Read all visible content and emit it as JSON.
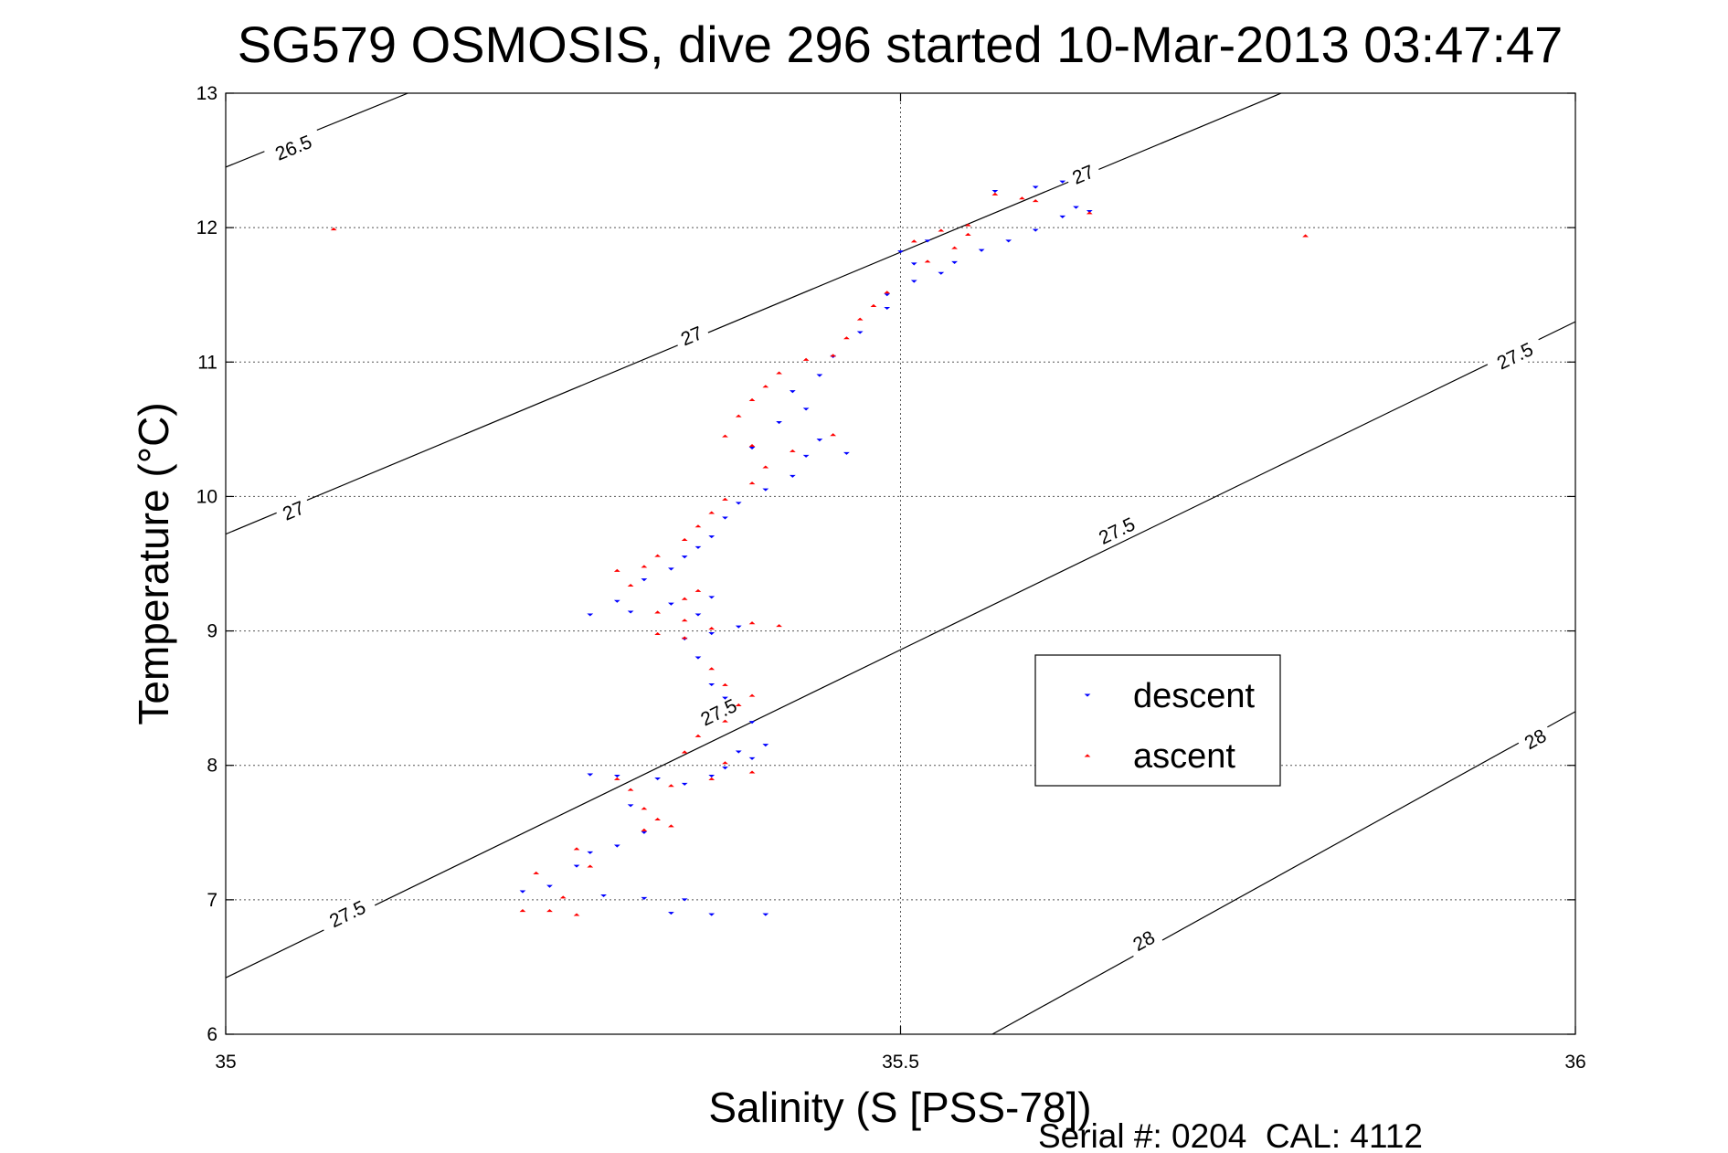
{
  "chart_data": {
    "type": "scatter",
    "title": "SG579 OSMOSIS, dive 296 started 10-Mar-2013 03:47:47",
    "xlabel": "Salinity (S [PSS-78])",
    "ylabel": "Temperature (°C)",
    "xlim": [
      35,
      36
    ],
    "ylim": [
      6,
      13
    ],
    "xticks": [
      35,
      35.5,
      36
    ],
    "yticks": [
      6,
      7,
      8,
      9,
      10,
      11,
      12,
      13
    ],
    "xtick_labels": [
      "35",
      "35.5",
      "36"
    ],
    "ytick_labels": [
      "6",
      "7",
      "8",
      "9",
      "10",
      "11",
      "12",
      "13"
    ],
    "grid": true,
    "legend_position": "right-center",
    "footer": "Serial #: 0204  CAL: 4112",
    "isopycnals": [
      {
        "label": "26.5",
        "points": [
          [
            35.0,
            12.45
          ],
          [
            35.135,
            13.0
          ]
        ],
        "label_positions": [
          [
            35.05,
            12.6
          ]
        ]
      },
      {
        "label": "27",
        "points": [
          [
            35.0,
            9.72
          ],
          [
            35.782,
            13.0
          ]
        ],
        "label_positions": [
          [
            35.05,
            9.9
          ],
          [
            35.345,
            11.2
          ],
          [
            35.635,
            12.4
          ]
        ]
      },
      {
        "label": "27.5",
        "points": [
          [
            35.0,
            6.42
          ],
          [
            36.0,
            11.3
          ]
        ],
        "label_positions": [
          [
            35.09,
            6.9
          ],
          [
            35.365,
            8.4
          ],
          [
            35.66,
            9.75
          ],
          [
            35.955,
            11.05
          ]
        ]
      },
      {
        "label": "28",
        "points": [
          [
            35.568,
            6.0
          ],
          [
            36.0,
            8.4
          ]
        ],
        "label_positions": [
          [
            35.68,
            6.7
          ],
          [
            35.97,
            8.2
          ]
        ]
      }
    ],
    "series": [
      {
        "name": "descent",
        "color": "#0000ff",
        "marker": "triangle-down",
        "points": [
          [
            35.62,
            12.34
          ],
          [
            35.6,
            12.3
          ],
          [
            35.57,
            12.27
          ],
          [
            35.63,
            12.15
          ],
          [
            35.64,
            12.12
          ],
          [
            35.62,
            12.08
          ],
          [
            35.6,
            11.98
          ],
          [
            35.58,
            11.9
          ],
          [
            35.56,
            11.83
          ],
          [
            35.54,
            11.74
          ],
          [
            35.51,
            11.6
          ],
          [
            35.49,
            11.5
          ],
          [
            35.52,
            11.9
          ],
          [
            35.5,
            11.82
          ],
          [
            35.51,
            11.73
          ],
          [
            35.53,
            11.66
          ],
          [
            35.49,
            11.4
          ],
          [
            35.47,
            11.22
          ],
          [
            35.45,
            11.04
          ],
          [
            35.44,
            10.9
          ],
          [
            35.42,
            10.78
          ],
          [
            35.43,
            10.65
          ],
          [
            35.41,
            10.55
          ],
          [
            35.44,
            10.42
          ],
          [
            35.46,
            10.32
          ],
          [
            35.43,
            10.3
          ],
          [
            35.39,
            10.36
          ],
          [
            35.42,
            10.15
          ],
          [
            35.4,
            10.05
          ],
          [
            35.38,
            9.95
          ],
          [
            35.37,
            9.84
          ],
          [
            35.36,
            9.7
          ],
          [
            35.35,
            9.62
          ],
          [
            35.34,
            9.55
          ],
          [
            35.33,
            9.46
          ],
          [
            35.31,
            9.38
          ],
          [
            35.29,
            9.22
          ],
          [
            35.36,
            9.25
          ],
          [
            35.33,
            9.2
          ],
          [
            35.3,
            9.14
          ],
          [
            35.27,
            9.12
          ],
          [
            35.35,
            9.12
          ],
          [
            35.38,
            9.03
          ],
          [
            35.36,
            8.98
          ],
          [
            35.34,
            8.94
          ],
          [
            35.35,
            8.8
          ],
          [
            35.36,
            8.6
          ],
          [
            35.37,
            8.5
          ],
          [
            35.39,
            8.32
          ],
          [
            35.4,
            8.15
          ],
          [
            35.38,
            8.1
          ],
          [
            35.39,
            8.05
          ],
          [
            35.37,
            7.98
          ],
          [
            35.36,
            7.92
          ],
          [
            35.34,
            7.86
          ],
          [
            35.32,
            7.9
          ],
          [
            35.29,
            7.92
          ],
          [
            35.27,
            7.93
          ],
          [
            35.3,
            7.7
          ],
          [
            35.31,
            7.5
          ],
          [
            35.29,
            7.4
          ],
          [
            35.27,
            7.35
          ],
          [
            35.26,
            7.25
          ],
          [
            35.24,
            7.1
          ],
          [
            35.22,
            7.06
          ],
          [
            35.28,
            7.03
          ],
          [
            35.31,
            7.01
          ],
          [
            35.34,
            7.0
          ],
          [
            35.33,
            6.9
          ],
          [
            35.36,
            6.89
          ],
          [
            35.4,
            6.89
          ]
        ]
      },
      {
        "name": "ascent",
        "color": "#ff0000",
        "marker": "triangle-up",
        "points": [
          [
            35.57,
            12.25
          ],
          [
            35.59,
            12.22
          ],
          [
            35.6,
            12.2
          ],
          [
            35.64,
            12.11
          ],
          [
            35.55,
            12.02
          ],
          [
            35.53,
            11.98
          ],
          [
            35.51,
            11.9
          ],
          [
            35.54,
            11.85
          ],
          [
            35.52,
            11.75
          ],
          [
            35.55,
            11.95
          ],
          [
            35.49,
            11.52
          ],
          [
            35.48,
            11.42
          ],
          [
            35.47,
            11.32
          ],
          [
            35.46,
            11.18
          ],
          [
            35.45,
            11.05
          ],
          [
            35.43,
            11.02
          ],
          [
            35.41,
            10.92
          ],
          [
            35.4,
            10.82
          ],
          [
            35.39,
            10.72
          ],
          [
            35.38,
            10.6
          ],
          [
            35.37,
            10.45
          ],
          [
            35.39,
            10.38
          ],
          [
            35.45,
            10.46
          ],
          [
            35.42,
            10.34
          ],
          [
            35.4,
            10.22
          ],
          [
            35.39,
            10.1
          ],
          [
            35.37,
            9.98
          ],
          [
            35.36,
            9.88
          ],
          [
            35.35,
            9.78
          ],
          [
            35.34,
            9.68
          ],
          [
            35.32,
            9.56
          ],
          [
            35.31,
            9.48
          ],
          [
            35.29,
            9.45
          ],
          [
            35.3,
            9.34
          ],
          [
            35.35,
            9.3
          ],
          [
            35.34,
            9.24
          ],
          [
            35.32,
            9.14
          ],
          [
            35.34,
            9.08
          ],
          [
            35.39,
            9.06
          ],
          [
            35.41,
            9.04
          ],
          [
            35.36,
            9.02
          ],
          [
            35.34,
            8.95
          ],
          [
            35.32,
            8.98
          ],
          [
            35.36,
            8.72
          ],
          [
            35.37,
            8.6
          ],
          [
            35.39,
            8.52
          ],
          [
            35.38,
            8.45
          ],
          [
            35.37,
            8.33
          ],
          [
            35.35,
            8.22
          ],
          [
            35.34,
            8.1
          ],
          [
            35.37,
            8.02
          ],
          [
            35.39,
            7.95
          ],
          [
            35.36,
            7.9
          ],
          [
            35.33,
            7.85
          ],
          [
            35.3,
            7.82
          ],
          [
            35.29,
            7.9
          ],
          [
            35.31,
            7.68
          ],
          [
            35.32,
            7.6
          ],
          [
            35.33,
            7.55
          ],
          [
            35.31,
            7.52
          ],
          [
            35.26,
            7.38
          ],
          [
            35.23,
            7.2
          ],
          [
            35.27,
            7.25
          ],
          [
            35.25,
            7.02
          ],
          [
            35.24,
            6.92
          ],
          [
            35.22,
            6.92
          ],
          [
            35.26,
            6.89
          ],
          [
            35.08,
            11.99
          ],
          [
            35.8,
            11.94
          ]
        ]
      }
    ]
  }
}
